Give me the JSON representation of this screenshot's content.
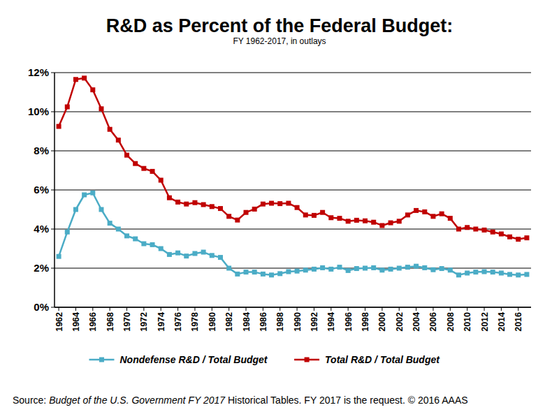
{
  "chart_data": {
    "type": "line",
    "title": "R&D as Percent of the Federal Budget:",
    "subtitle": "FY 1962-2017, in outlays",
    "source": [
      "Source: ",
      "Budget of the U.S. Government FY 2017",
      " Historical Tables. FY 2017 is the request. © 2016 AAAS"
    ],
    "x": [
      1962,
      1963,
      1964,
      1965,
      1966,
      1967,
      1968,
      1969,
      1970,
      1971,
      1972,
      1973,
      1974,
      1975,
      1976,
      1977,
      1978,
      1979,
      1980,
      1981,
      1982,
      1983,
      1984,
      1985,
      1986,
      1987,
      1988,
      1989,
      1990,
      1991,
      1992,
      1993,
      1994,
      1995,
      1996,
      1997,
      1998,
      1999,
      2000,
      2001,
      2002,
      2003,
      2004,
      2005,
      2006,
      2007,
      2008,
      2009,
      2010,
      2011,
      2012,
      2013,
      2014,
      2015,
      2016,
      2017
    ],
    "series": [
      {
        "name": "Nondefense R&D / Total Budget",
        "color": "#4bacc6",
        "marker": "square",
        "line_style": "solid",
        "values": [
          2.6,
          3.85,
          5.0,
          5.75,
          5.85,
          5.0,
          4.3,
          4.0,
          3.65,
          3.5,
          3.25,
          3.2,
          3.0,
          2.7,
          2.78,
          2.62,
          2.75,
          2.82,
          2.65,
          2.55,
          2.0,
          1.7,
          1.8,
          1.8,
          1.7,
          1.65,
          1.72,
          1.82,
          1.85,
          1.9,
          1.95,
          2.02,
          1.95,
          2.05,
          1.88,
          1.98,
          2.0,
          2.02,
          1.9,
          1.95,
          2.0,
          2.05,
          2.1,
          2.02,
          1.92,
          1.98,
          1.9,
          1.65,
          1.75,
          1.8,
          1.82,
          1.8,
          1.75,
          1.68,
          1.65,
          1.68
        ]
      },
      {
        "name": "Total R&D / Total Budget",
        "color": "#c00000",
        "marker": "square",
        "line_style": "solid",
        "values": [
          9.25,
          10.25,
          11.65,
          11.72,
          11.12,
          10.15,
          9.1,
          8.55,
          7.78,
          7.35,
          7.1,
          6.95,
          6.5,
          5.6,
          5.38,
          5.28,
          5.35,
          5.25,
          5.15,
          5.05,
          4.65,
          4.46,
          4.85,
          5.02,
          5.28,
          5.32,
          5.3,
          5.32,
          5.1,
          4.72,
          4.7,
          4.85,
          4.58,
          4.55,
          4.4,
          4.45,
          4.42,
          4.35,
          4.18,
          4.32,
          4.4,
          4.72,
          4.95,
          4.88,
          4.65,
          4.78,
          4.55,
          4.0,
          4.08,
          4.0,
          3.95,
          3.85,
          3.75,
          3.6,
          3.48,
          3.55
        ]
      }
    ],
    "xlim": [
      1961.5,
      2017.5
    ],
    "xticks": [
      1962,
      1964,
      1966,
      1968,
      1970,
      1972,
      1974,
      1976,
      1978,
      1980,
      1982,
      1984,
      1986,
      1988,
      1990,
      1992,
      1994,
      1996,
      1998,
      2000,
      2002,
      2004,
      2006,
      2008,
      2010,
      2012,
      2014,
      2016
    ],
    "ylim": [
      0,
      12
    ],
    "yticks": [
      {
        "value": 0,
        "label": "0%"
      },
      {
        "value": 2,
        "label": "2%"
      },
      {
        "value": 4,
        "label": "4%"
      },
      {
        "value": 6,
        "label": "6%"
      },
      {
        "value": 8,
        "label": "8%"
      },
      {
        "value": 10,
        "label": "10%"
      },
      {
        "value": 12,
        "label": "12%"
      }
    ],
    "grid": true,
    "legend": "bottom"
  }
}
